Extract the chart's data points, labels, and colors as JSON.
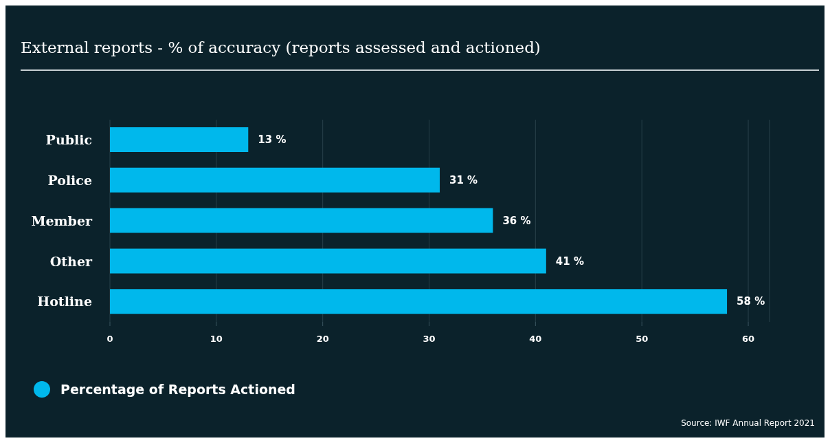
{
  "chart_data": {
    "type": "bar",
    "orientation": "horizontal",
    "title": "External reports - % of accuracy (reports assessed and actioned)",
    "categories": [
      "Public",
      "Police",
      "Member",
      "Other",
      "Hotline"
    ],
    "series": [
      {
        "name": "Percentage of Reports Actioned",
        "color": "#00b8ec",
        "values": [
          13,
          31,
          36,
          41,
          58
        ],
        "value_labels": [
          "13 %",
          "31 %",
          "36 %",
          "41 %",
          "58 %"
        ]
      }
    ],
    "xlim": [
      0,
      62
    ],
    "xticks": [
      0,
      10,
      20,
      30,
      40,
      50,
      60
    ],
    "grid": "x",
    "legend": "bottom left",
    "annotations": [
      "Source: IWF Annual Report 2021"
    ]
  }
}
